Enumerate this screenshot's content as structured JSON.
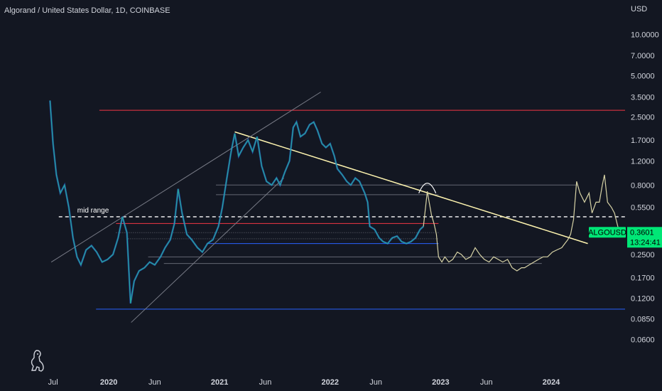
{
  "header": {
    "title": "Algorand / United States Dollar, 1D, COINBASE"
  },
  "price_axis": {
    "currency": "USD"
  },
  "chart_data": {
    "type": "line",
    "symbol": "ALGOUSD",
    "title": "Algorand / United States Dollar, 1D, COINBASE",
    "y_scale": "log",
    "ylim": [
      0.05,
      12
    ],
    "y_ticks": [
      "10.0000",
      "7.0000",
      "5.0000",
      "3.5000",
      "2.5000",
      "1.7000",
      "1.2000",
      "0.8000",
      "0.5500",
      "0.3601",
      "0.2500",
      "0.1700",
      "0.1200",
      "0.0850",
      "0.0600"
    ],
    "x_ticks": [
      {
        "label": "Jul",
        "date": "2019-07-01",
        "bold": false
      },
      {
        "label": "2020",
        "date": "2020-01-01",
        "bold": true
      },
      {
        "label": "Jun",
        "date": "2020-06-01",
        "bold": false
      },
      {
        "label": "2021",
        "date": "2021-01-01",
        "bold": true
      },
      {
        "label": "Jun",
        "date": "2021-06-01",
        "bold": false
      },
      {
        "label": "2022",
        "date": "2022-01-01",
        "bold": true
      },
      {
        "label": "Jun",
        "date": "2022-06-01",
        "bold": false
      },
      {
        "label": "2023",
        "date": "2023-01-01",
        "bold": true
      },
      {
        "label": "Jun",
        "date": "2023-06-01",
        "bold": false
      },
      {
        "label": "2024",
        "date": "2024-01-01",
        "bold": true
      }
    ],
    "xlim": [
      "2019-06-20",
      "2024-09-01"
    ],
    "series": [
      {
        "style": "historical",
        "color": "#26a69a",
        "points": [
          [
            "2019-06-21",
            3.3
          ],
          [
            "2019-07-01",
            1.6
          ],
          [
            "2019-07-12",
            0.95
          ],
          [
            "2019-07-25",
            0.7
          ],
          [
            "2019-08-08",
            0.8
          ],
          [
            "2019-08-22",
            0.55
          ],
          [
            "2019-09-05",
            0.33
          ],
          [
            "2019-09-18",
            0.24
          ],
          [
            "2019-10-01",
            0.21
          ],
          [
            "2019-10-18",
            0.27
          ],
          [
            "2019-11-05",
            0.29
          ],
          [
            "2019-11-22",
            0.26
          ],
          [
            "2019-12-10",
            0.22
          ],
          [
            "2019-12-28",
            0.23
          ],
          [
            "2020-01-15",
            0.25
          ],
          [
            "2020-02-01",
            0.33
          ],
          [
            "2020-02-15",
            0.47
          ],
          [
            "2020-03-01",
            0.36
          ],
          [
            "2020-03-13",
            0.11
          ],
          [
            "2020-03-25",
            0.16
          ],
          [
            "2020-04-10",
            0.19
          ],
          [
            "2020-04-28",
            0.2
          ],
          [
            "2020-05-15",
            0.22
          ],
          [
            "2020-06-01",
            0.21
          ],
          [
            "2020-06-20",
            0.24
          ],
          [
            "2020-07-05",
            0.28
          ],
          [
            "2020-07-22",
            0.32
          ],
          [
            "2020-08-05",
            0.42
          ],
          [
            "2020-08-17",
            0.75
          ],
          [
            "2020-08-30",
            0.5
          ],
          [
            "2020-09-15",
            0.35
          ],
          [
            "2020-10-01",
            0.32
          ],
          [
            "2020-10-20",
            0.28
          ],
          [
            "2020-11-05",
            0.26
          ],
          [
            "2020-11-22",
            0.3
          ],
          [
            "2020-12-10",
            0.32
          ],
          [
            "2020-12-28",
            0.4
          ],
          [
            "2021-01-10",
            0.55
          ],
          [
            "2021-01-25",
            0.9
          ],
          [
            "2021-02-08",
            1.4
          ],
          [
            "2021-02-20",
            1.9
          ],
          [
            "2021-03-05",
            1.3
          ],
          [
            "2021-03-20",
            1.5
          ],
          [
            "2021-04-05",
            1.7
          ],
          [
            "2021-04-20",
            1.4
          ],
          [
            "2021-05-05",
            1.8
          ],
          [
            "2021-05-20",
            1.1
          ],
          [
            "2021-06-05",
            0.85
          ],
          [
            "2021-06-22",
            0.8
          ],
          [
            "2021-07-08",
            0.9
          ],
          [
            "2021-07-20",
            0.8
          ],
          [
            "2021-08-05",
            1.0
          ],
          [
            "2021-08-20",
            1.2
          ],
          [
            "2021-09-01",
            2.1
          ],
          [
            "2021-09-12",
            2.3
          ],
          [
            "2021-09-25",
            1.8
          ],
          [
            "2021-10-10",
            1.9
          ],
          [
            "2021-10-25",
            2.2
          ],
          [
            "2021-11-08",
            2.3
          ],
          [
            "2021-11-20",
            2.0
          ],
          [
            "2021-12-05",
            1.6
          ],
          [
            "2021-12-18",
            1.5
          ],
          [
            "2022-01-01",
            1.6
          ],
          [
            "2022-01-15",
            1.3
          ],
          [
            "2022-01-25",
            1.05
          ],
          [
            "2022-02-10",
            0.95
          ],
          [
            "2022-02-25",
            0.85
          ],
          [
            "2022-03-10",
            0.8
          ],
          [
            "2022-03-25",
            0.9
          ],
          [
            "2022-04-08",
            0.85
          ],
          [
            "2022-04-25",
            0.7
          ],
          [
            "2022-05-05",
            0.6
          ],
          [
            "2022-05-12",
            0.4
          ],
          [
            "2022-05-28",
            0.38
          ],
          [
            "2022-06-12",
            0.33
          ],
          [
            "2022-06-25",
            0.31
          ],
          [
            "2022-07-10",
            0.3
          ],
          [
            "2022-07-25",
            0.33
          ],
          [
            "2022-08-10",
            0.34
          ],
          [
            "2022-08-25",
            0.31
          ],
          [
            "2022-09-10",
            0.3
          ],
          [
            "2022-09-25",
            0.31
          ],
          [
            "2022-10-10",
            0.33
          ],
          [
            "2022-10-25",
            0.38
          ],
          [
            "2022-11-05",
            0.4
          ]
        ]
      },
      {
        "style": "projection",
        "color": "#d7d3a6",
        "points": [
          [
            "2022-11-05",
            0.4
          ],
          [
            "2022-11-12",
            0.55
          ],
          [
            "2022-11-18",
            0.72
          ],
          [
            "2022-11-24",
            0.6
          ],
          [
            "2022-12-02",
            0.48
          ],
          [
            "2022-12-10",
            0.42
          ],
          [
            "2022-12-18",
            0.35
          ],
          [
            "2022-12-25",
            0.24
          ],
          [
            "2023-01-05",
            0.22
          ],
          [
            "2023-01-15",
            0.24
          ],
          [
            "2023-01-28",
            0.22
          ],
          [
            "2023-02-10",
            0.23
          ],
          [
            "2023-02-25",
            0.26
          ],
          [
            "2023-03-10",
            0.25
          ],
          [
            "2023-03-25",
            0.23
          ],
          [
            "2023-04-10",
            0.24
          ],
          [
            "2023-04-25",
            0.28
          ],
          [
            "2023-05-10",
            0.25
          ],
          [
            "2023-05-25",
            0.23
          ],
          [
            "2023-06-10",
            0.22
          ],
          [
            "2023-06-25",
            0.24
          ],
          [
            "2023-07-10",
            0.23
          ],
          [
            "2023-07-25",
            0.22
          ],
          [
            "2023-08-10",
            0.23
          ],
          [
            "2023-08-25",
            0.2
          ],
          [
            "2023-09-10",
            0.19
          ],
          [
            "2023-09-25",
            0.2
          ],
          [
            "2023-10-05",
            0.2
          ],
          [
            "2023-10-20",
            0.21
          ],
          [
            "2023-11-05",
            0.22
          ],
          [
            "2023-11-20",
            0.23
          ],
          [
            "2023-12-05",
            0.24
          ],
          [
            "2023-12-20",
            0.24
          ],
          [
            "2024-01-05",
            0.26
          ],
          [
            "2024-01-20",
            0.27
          ],
          [
            "2024-02-05",
            0.28
          ],
          [
            "2024-02-15",
            0.3
          ],
          [
            "2024-02-25",
            0.32
          ],
          [
            "2024-03-05",
            0.35
          ],
          [
            "2024-03-15",
            0.45
          ],
          [
            "2024-03-25",
            0.85
          ],
          [
            "2024-04-05",
            0.7
          ],
          [
            "2024-04-20",
            0.6
          ],
          [
            "2024-05-05",
            0.7
          ],
          [
            "2024-05-15",
            0.5
          ],
          [
            "2024-05-28",
            0.6
          ],
          [
            "2024-06-08",
            0.6
          ],
          [
            "2024-06-18",
            0.8
          ],
          [
            "2024-06-25",
            0.95
          ],
          [
            "2024-07-05",
            0.6
          ],
          [
            "2024-07-18",
            0.55
          ],
          [
            "2024-07-28",
            0.5
          ],
          [
            "2024-08-08",
            0.4
          ],
          [
            "2024-08-18",
            0.34
          ]
        ]
      }
    ],
    "horizontal_levels": [
      {
        "price": 2.8,
        "from": "2019-12-01",
        "to": "2024-09-01",
        "color": "#f23645",
        "style": "solid"
      },
      {
        "price": 0.1,
        "from": "2019-11-20",
        "to": "2024-09-01",
        "color": "#2962ff",
        "style": "solid"
      },
      {
        "price": 0.47,
        "from": "2019-07-20",
        "to": "2024-09-01",
        "color": "#ffffff",
        "style": "dashed",
        "label": "mid range"
      },
      {
        "price": 0.42,
        "from": "2020-01-25",
        "to": "2022-12-25",
        "color": "#f23645",
        "style": "solid"
      },
      {
        "price": 0.3,
        "from": "2020-11-20",
        "to": "2022-12-25",
        "color": "#2962ff",
        "style": "solid"
      },
      {
        "price": 0.8,
        "from": "2020-12-20",
        "to": "2024-03-28",
        "color": "#787b86",
        "style": "solid"
      },
      {
        "price": 0.68,
        "from": "2020-12-20",
        "to": "2022-12-25",
        "color": "#787b86",
        "style": "solid"
      },
      {
        "price": 0.36,
        "from": "2020-01-25",
        "to": "2022-12-25",
        "color": "#787b86",
        "style": "dotted"
      },
      {
        "price": 0.325,
        "from": "2020-03-05",
        "to": "2022-12-25",
        "color": "#787b86",
        "style": "dotted"
      },
      {
        "price": 0.24,
        "from": "2020-05-10",
        "to": "2023-12-01",
        "color": "#787b86",
        "style": "solid"
      },
      {
        "price": 0.215,
        "from": "2020-07-01",
        "to": "2023-12-01",
        "color": "#787b86",
        "style": "solid"
      }
    ],
    "trend_lines": [
      {
        "p1": [
          "2021-02-20",
          1.95
        ],
        "p2": [
          "2024-05-01",
          0.3
        ],
        "color": "#fff5b0",
        "width": 1.5
      },
      {
        "p1": [
          "2019-06-25",
          0.22
        ],
        "p2": [
          "2021-12-01",
          3.8
        ],
        "color": "#787b86",
        "width": 1
      },
      {
        "p1": [
          "2020-03-15",
          0.08
        ],
        "p2": [
          "2021-08-01",
          0.9
        ],
        "color": "#787b86",
        "width": 1
      }
    ],
    "arc": {
      "center": [
        "2022-11-18",
        0.75
      ],
      "color": "#ffffff"
    },
    "current_price": {
      "label": "ALGOUSD",
      "value": "0.3601",
      "countdown": "13:24:41",
      "color": "#00e676"
    }
  }
}
